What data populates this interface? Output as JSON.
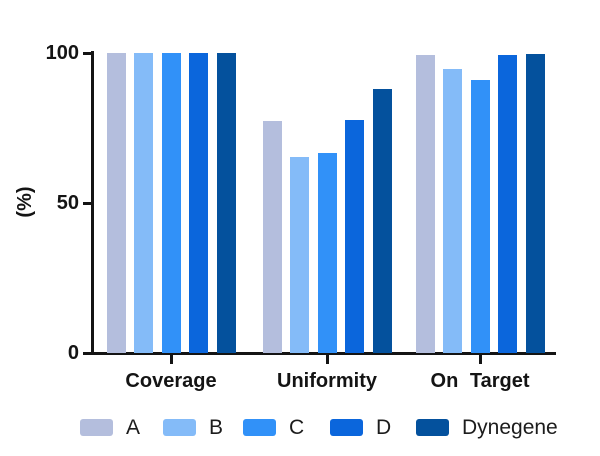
{
  "chart_data": {
    "type": "bar",
    "title": "",
    "xlabel": "",
    "ylabel": "(%)",
    "categories": [
      "Coverage",
      "Uniformity",
      "On Target"
    ],
    "series": [
      {
        "name": "A",
        "color": "#b4bedd",
        "values": [
          100,
          77.3,
          99.3
        ]
      },
      {
        "name": "B",
        "color": "#84bbf8",
        "values": [
          100,
          65.2,
          94.7
        ]
      },
      {
        "name": "C",
        "color": "#3191f8",
        "values": [
          100,
          66.8,
          91.0
        ]
      },
      {
        "name": "D",
        "color": "#0b66dc",
        "values": [
          100,
          77.6,
          99.2
        ]
      },
      {
        "name": "Dynegene",
        "color": "#04519d",
        "values": [
          100,
          88.0,
          99.8
        ]
      }
    ],
    "yticks": [
      0,
      50,
      100
    ],
    "ylim": [
      0,
      100
    ],
    "grid": false,
    "legend_position": "bottom"
  }
}
